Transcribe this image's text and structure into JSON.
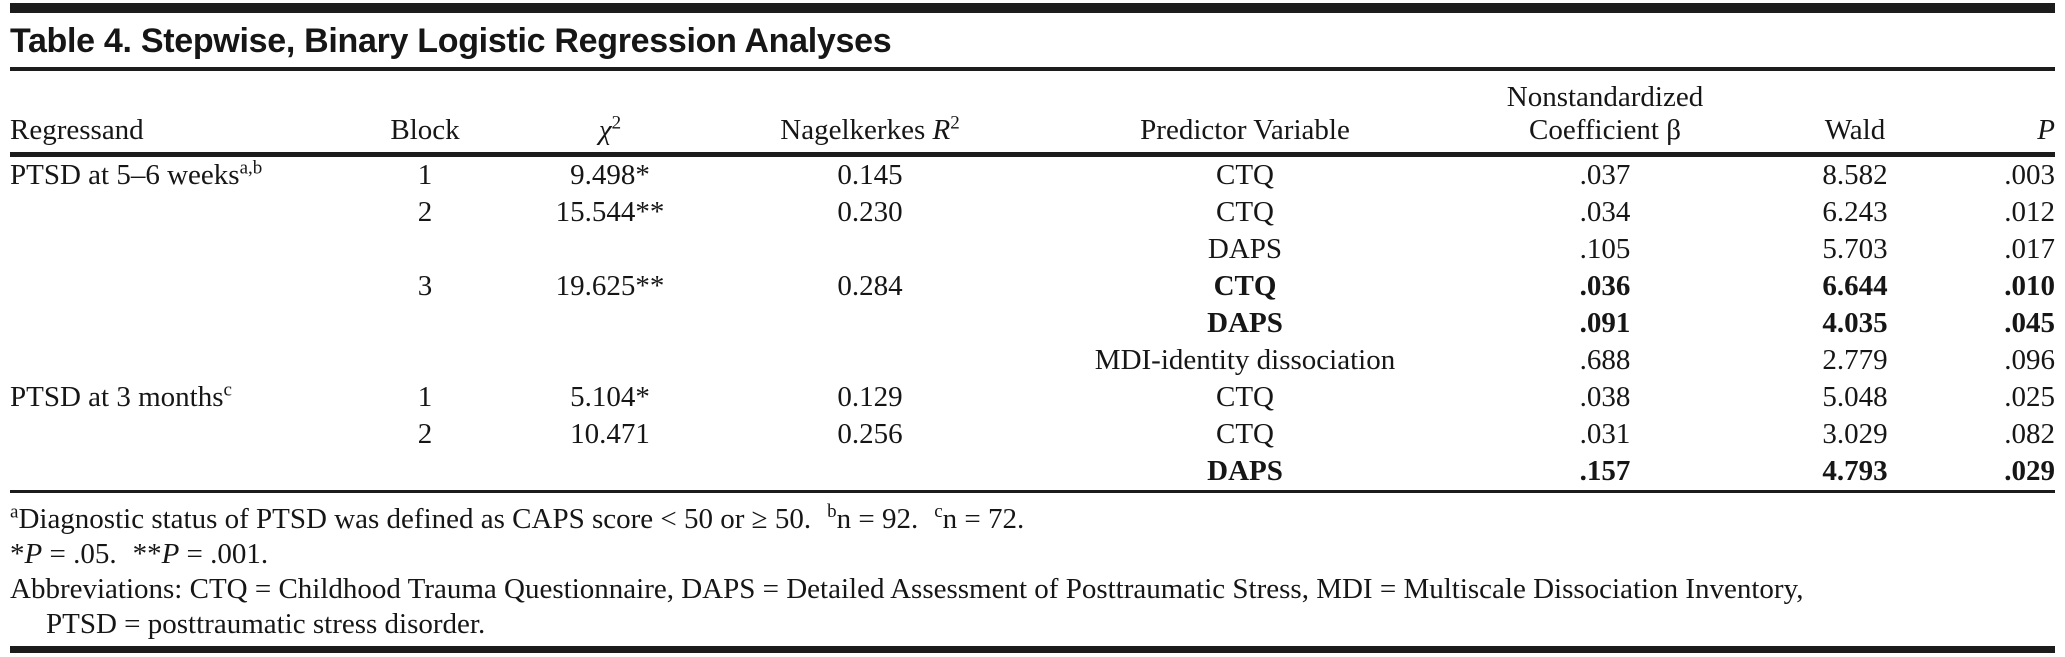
{
  "title": "Table 4. Stepwise, Binary Logistic Regression Analyses",
  "columns": {
    "regressand": "Regressand",
    "block": "Block",
    "chi": "χ",
    "chi_sup": "2",
    "nagelkerke_text": "Nagelkerkes ",
    "nagelkerke_r": "R",
    "nagelkerke_sup": "2",
    "predictor": "Predictor Variable",
    "coeff_line1": "Nonstandardized",
    "coeff_line2": "Coefficient β",
    "wald": "Wald",
    "p": "P"
  },
  "rows": [
    {
      "regressand": "PTSD at 5–6 weeks",
      "regressand_sup": "a,b",
      "block": "1",
      "chi2": "9.498*",
      "r2": "0.145",
      "predictor": "CTQ",
      "coeff": ".037",
      "wald": "8.582",
      "p": ".003"
    },
    {
      "regressand": "",
      "regressand_sup": "",
      "block": "2",
      "chi2": "15.544**",
      "r2": "0.230",
      "predictor": "CTQ",
      "coeff": ".034",
      "wald": "6.243",
      "p": ".012"
    },
    {
      "regressand": "",
      "regressand_sup": "",
      "block": "",
      "chi2": "",
      "r2": "",
      "predictor": "DAPS",
      "coeff": ".105",
      "wald": "5.703",
      "p": ".017"
    },
    {
      "regressand": "",
      "regressand_sup": "",
      "block": "3",
      "chi2": "19.625**",
      "r2": "0.284",
      "predictor": "CTQ",
      "coeff": ".036",
      "wald": "6.644",
      "p": ".010"
    },
    {
      "regressand": "",
      "regressand_sup": "",
      "block": "",
      "chi2": "",
      "r2": "",
      "predictor": "DAPS",
      "coeff": ".091",
      "wald": "4.035",
      "p": ".045"
    },
    {
      "regressand": "",
      "regressand_sup": "",
      "block": "",
      "chi2": "",
      "r2": "",
      "predictor": "MDI-identity dissociation",
      "coeff": ".688",
      "wald": "2.779",
      "p": ".096"
    },
    {
      "regressand": "PTSD at 3 months",
      "regressand_sup": "c",
      "block": "1",
      "chi2": "5.104*",
      "r2": "0.129",
      "predictor": "CTQ",
      "coeff": ".038",
      "wald": "5.048",
      "p": ".025"
    },
    {
      "regressand": "",
      "regressand_sup": "",
      "block": "2",
      "chi2": "10.471",
      "r2": "0.256",
      "predictor": "CTQ",
      "coeff": ".031",
      "wald": "3.029",
      "p": ".082"
    },
    {
      "regressand": "",
      "regressand_sup": "",
      "block": "",
      "chi2": "",
      "r2": "",
      "predictor": "DAPS",
      "coeff": ".157",
      "wald": "4.793",
      "p": ".029"
    }
  ],
  "footnotes": {
    "fn1": {
      "sup_a": "a",
      "text_a": "Diagnostic status of PTSD was defined as CAPS score < 50 or ≥ 50.",
      "sup_b": "b",
      "text_b": "n = 92.",
      "sup_c": "c",
      "text_c": "n = 72."
    },
    "fn2": {
      "star1": "*",
      "p1": "P",
      "val1": " = .05.",
      "star2": "**",
      "p2": "P",
      "val2": " = .001."
    },
    "fn3_line1": "Abbreviations: CTQ = Childhood Trauma Questionnaire, DAPS = Detailed Assessment of Posttraumatic Stress, MDI = Multiscale Dissociation Inventory,",
    "fn3_line2": "PTSD = posttraumatic stress disorder."
  }
}
